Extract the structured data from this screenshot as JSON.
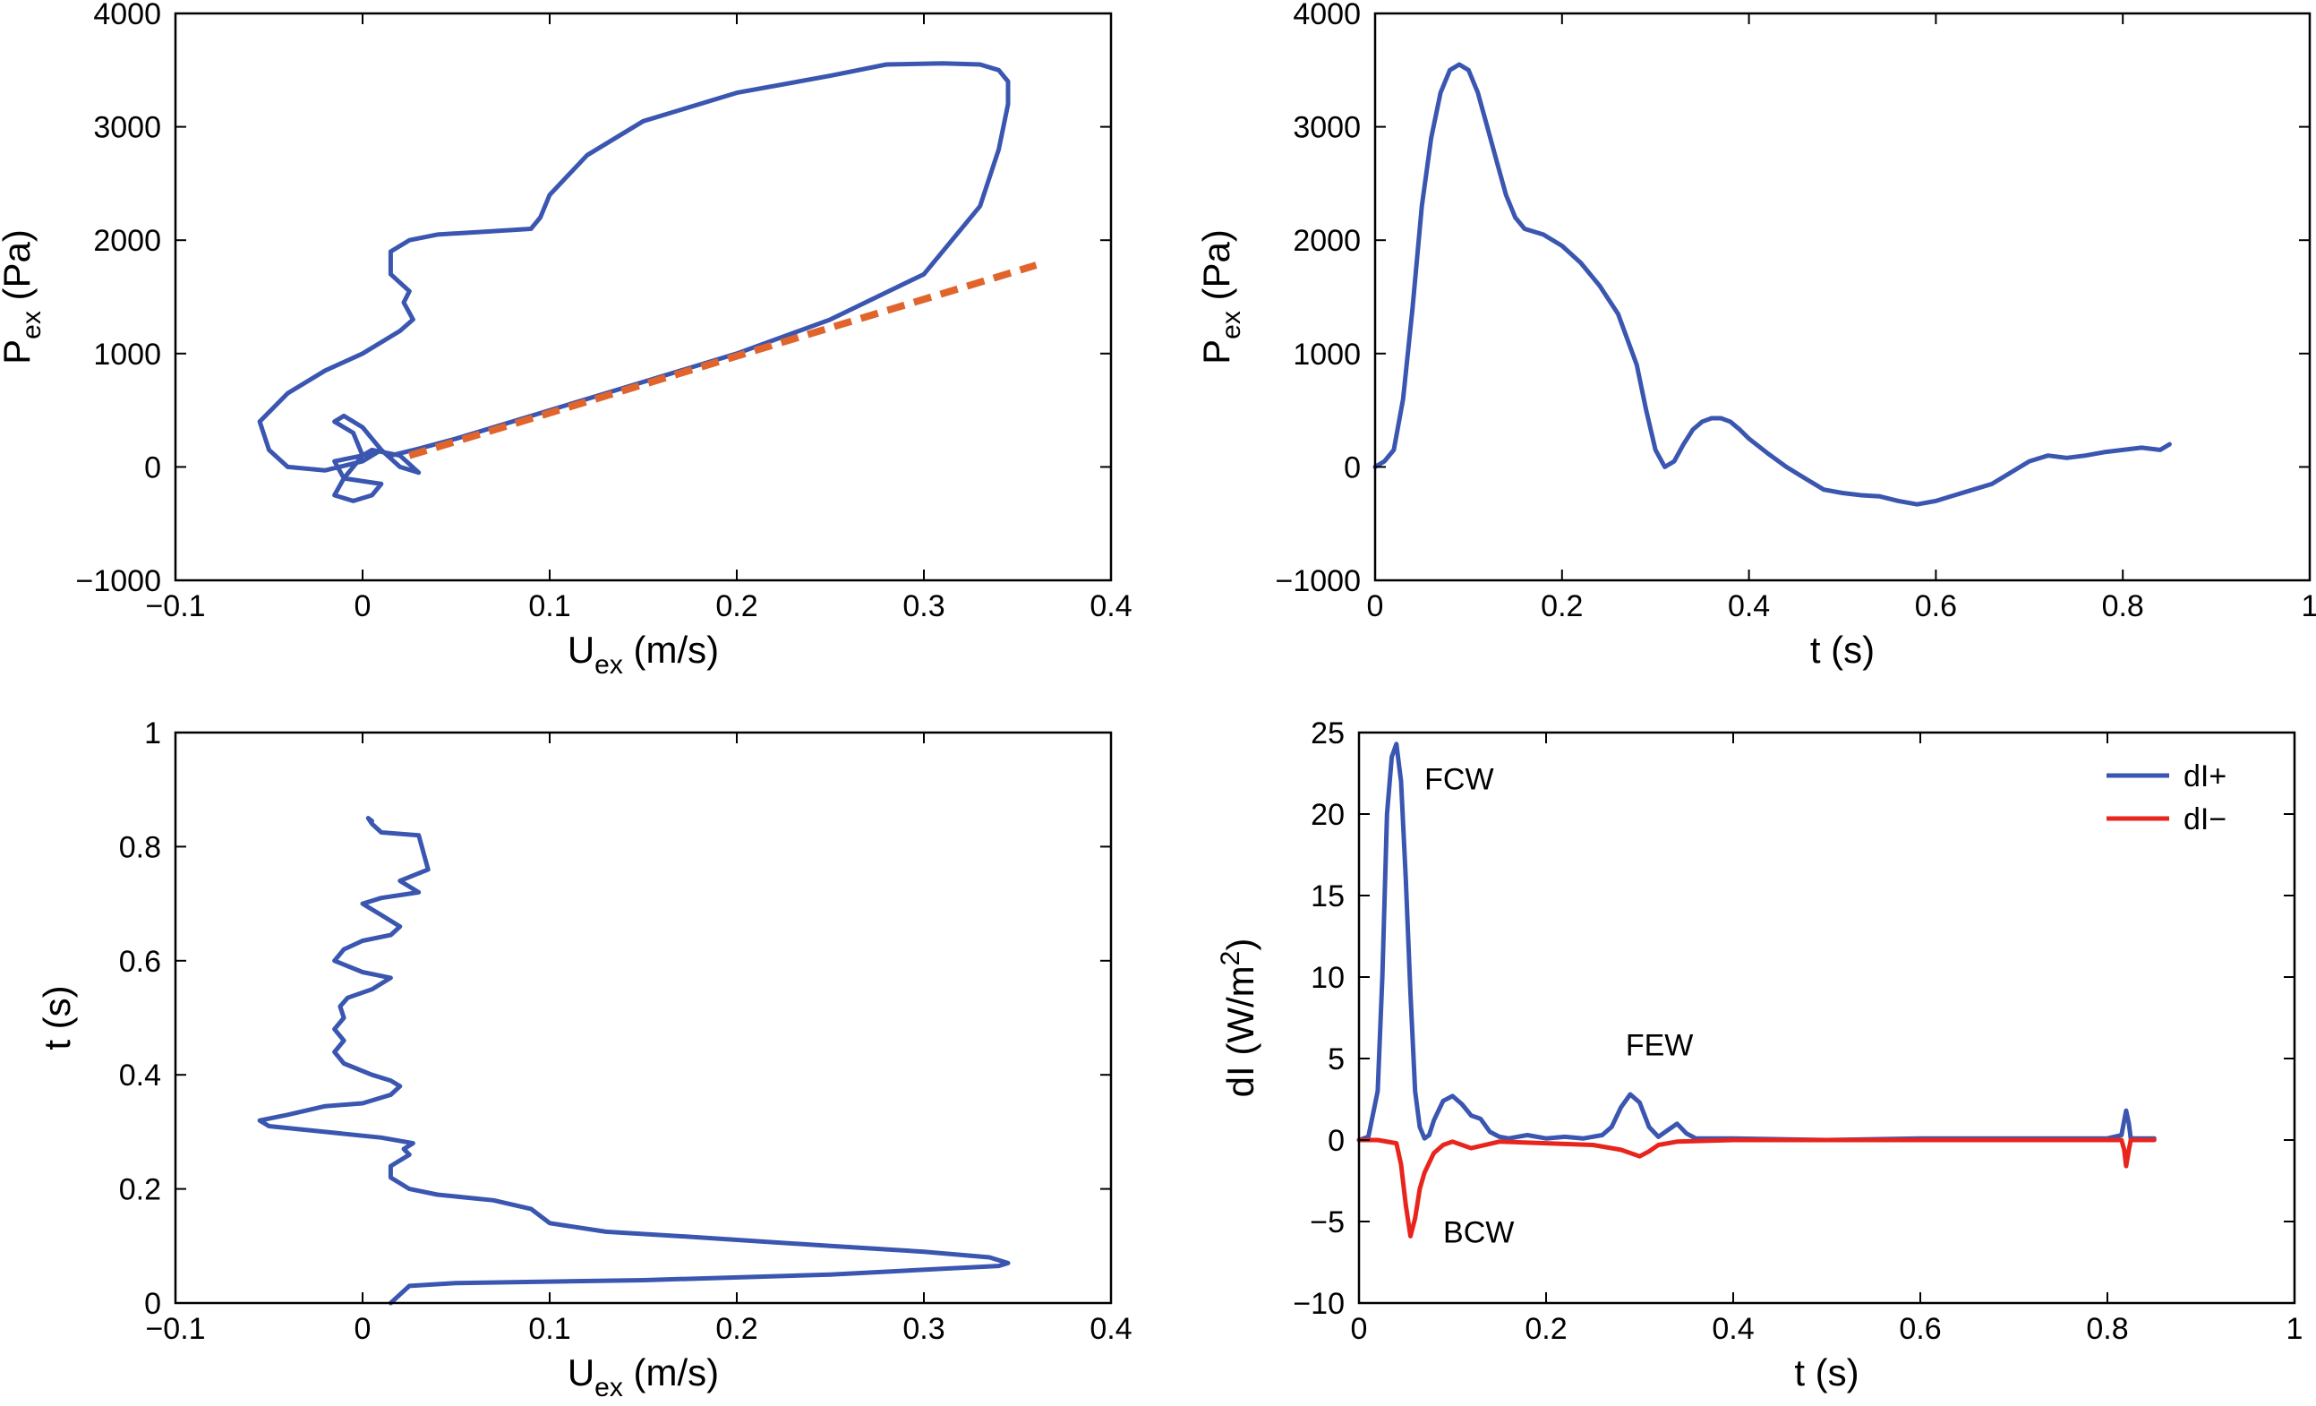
{
  "colors": {
    "blue": "#3a56b0",
    "red": "#e8251d",
    "orange": "#e0642c"
  },
  "chart_data": [
    {
      "id": "p-vs-u",
      "type": "line",
      "title": "",
      "xlabel": "U",
      "xlabel_sub": "ex",
      "xlabel_unit": " (m/s)",
      "ylabel": "P",
      "ylabel_sub": "ex",
      "ylabel_unit": " (Pa)",
      "xlim": [
        -0.1,
        0.4
      ],
      "ylim": [
        -1000,
        4000
      ],
      "xticks": [
        -0.1,
        0,
        0.1,
        0.2,
        0.3,
        0.4
      ],
      "xtick_labels": [
        "−0.1",
        "0",
        "0.1",
        "0.2",
        "0.3",
        "0.4"
      ],
      "yticks": [
        -1000,
        0,
        1000,
        2000,
        3000,
        4000
      ],
      "ytick_labels": [
        "−1000",
        "0",
        "1000",
        "2000",
        "3000",
        "4000"
      ],
      "grid": false,
      "series": [
        {
          "style": "solid",
          "color": "blue",
          "x": [
            0.015,
            0.02,
            0.03,
            0.05,
            0.1,
            0.15,
            0.2,
            0.25,
            0.3,
            0.33,
            0.34,
            0.345,
            0.345,
            0.34,
            0.33,
            0.31,
            0.28,
            0.25,
            0.2,
            0.15,
            0.12,
            0.1,
            0.095,
            0.09,
            0.07,
            0.04,
            0.025,
            0.015,
            0.015,
            0.025,
            0.022,
            0.027,
            0.02,
            0.0,
            -0.02,
            -0.04,
            -0.055,
            -0.05,
            -0.04,
            -0.02,
            0.0,
            0.01,
            0.005,
            0.0,
            -0.01,
            -0.015,
            -0.005,
            0.0,
            -0.01,
            -0.015,
            -0.005,
            0.005,
            0.01,
            -0.01,
            -0.015,
            0.0,
            0.01,
            0.02,
            0.03,
            0.02,
            0.005,
            0.0
          ],
          "y": [
            100,
            120,
            160,
            250,
            500,
            750,
            1000,
            1300,
            1700,
            2300,
            2800,
            3200,
            3400,
            3500,
            3550,
            3560,
            3550,
            3450,
            3300,
            3050,
            2750,
            2400,
            2200,
            2100,
            2080,
            2050,
            2000,
            1900,
            1700,
            1550,
            1450,
            1300,
            1200,
            1000,
            850,
            650,
            400,
            150,
            0,
            -30,
            50,
            150,
            250,
            350,
            450,
            400,
            300,
            100,
            -100,
            -250,
            -300,
            -250,
            -150,
            -100,
            50,
            100,
            150,
            0,
            -50,
            100,
            150,
            100
          ]
        },
        {
          "style": "dashed",
          "color": "orange",
          "x": [
            0.025,
            0.36
          ],
          "y": [
            100,
            1780
          ]
        }
      ]
    },
    {
      "id": "p-vs-t",
      "type": "line",
      "title": "",
      "xlabel": "t (s)",
      "ylabel": "P",
      "ylabel_sub": "ex",
      "ylabel_unit": " (Pa)",
      "xlim": [
        0,
        1
      ],
      "ylim": [
        -1000,
        4000
      ],
      "xticks": [
        0,
        0.2,
        0.4,
        0.6,
        0.8,
        1
      ],
      "xtick_labels": [
        "0",
        "0.2",
        "0.4",
        "0.6",
        "0.8",
        "1"
      ],
      "yticks": [
        -1000,
        0,
        1000,
        2000,
        3000,
        4000
      ],
      "ytick_labels": [
        "−1000",
        "0",
        "1000",
        "2000",
        "3000",
        "4000"
      ],
      "grid": false,
      "series": [
        {
          "style": "solid",
          "color": "blue",
          "x": [
            0,
            0.01,
            0.02,
            0.03,
            0.04,
            0.05,
            0.06,
            0.07,
            0.08,
            0.09,
            0.1,
            0.11,
            0.12,
            0.13,
            0.14,
            0.15,
            0.16,
            0.18,
            0.2,
            0.22,
            0.24,
            0.26,
            0.28,
            0.29,
            0.3,
            0.31,
            0.32,
            0.33,
            0.34,
            0.35,
            0.36,
            0.37,
            0.38,
            0.39,
            0.4,
            0.42,
            0.44,
            0.46,
            0.48,
            0.5,
            0.52,
            0.54,
            0.56,
            0.58,
            0.6,
            0.62,
            0.64,
            0.66,
            0.68,
            0.7,
            0.72,
            0.74,
            0.76,
            0.78,
            0.8,
            0.82,
            0.84,
            0.85
          ],
          "y": [
            0,
            50,
            150,
            600,
            1400,
            2300,
            2900,
            3300,
            3500,
            3550,
            3500,
            3300,
            3000,
            2700,
            2400,
            2200,
            2100,
            2050,
            1950,
            1800,
            1600,
            1350,
            900,
            500,
            150,
            0,
            50,
            200,
            330,
            400,
            430,
            430,
            400,
            330,
            250,
            120,
            0,
            -100,
            -200,
            -230,
            -250,
            -260,
            -300,
            -330,
            -300,
            -250,
            -200,
            -150,
            -50,
            50,
            100,
            80,
            100,
            130,
            150,
            170,
            150,
            200
          ]
        }
      ]
    },
    {
      "id": "t-vs-u",
      "type": "line",
      "title": "",
      "xlabel": "U",
      "xlabel_sub": "ex",
      "xlabel_unit": " (m/s)",
      "ylabel": "t (s)",
      "xlim": [
        -0.1,
        0.4
      ],
      "ylim": [
        0,
        1
      ],
      "xticks": [
        -0.1,
        0,
        0.1,
        0.2,
        0.3,
        0.4
      ],
      "xtick_labels": [
        "−0.1",
        "0",
        "0.1",
        "0.2",
        "0.3",
        "0.4"
      ],
      "yticks": [
        0,
        0.2,
        0.4,
        0.6,
        0.8,
        1
      ],
      "ytick_labels": [
        "0",
        "0.2",
        "0.4",
        "0.6",
        "0.8",
        "1"
      ],
      "grid": false,
      "series": [
        {
          "style": "solid",
          "color": "blue",
          "x": [
            0.015,
            0.02,
            0.025,
            0.05,
            0.15,
            0.25,
            0.31,
            0.34,
            0.345,
            0.335,
            0.3,
            0.25,
            0.18,
            0.13,
            0.1,
            0.09,
            0.07,
            0.04,
            0.025,
            0.015,
            0.015,
            0.025,
            0.022,
            0.027,
            0.01,
            -0.02,
            -0.05,
            -0.055,
            -0.04,
            -0.02,
            0.0,
            0.015,
            0.02,
            0.015,
            0.005,
            -0.01,
            -0.015,
            -0.01,
            -0.015,
            -0.01,
            -0.012,
            -0.008,
            0.005,
            0.015,
            0.0,
            -0.015,
            -0.01,
            0.0,
            0.015,
            0.02,
            0.01,
            0.0,
            0.01,
            0.03,
            0.02,
            0.035,
            0.03,
            0.01,
            0.005,
            0.003,
            0.005
          ],
          "y": [
            0.0,
            0.015,
            0.03,
            0.035,
            0.04,
            0.05,
            0.06,
            0.065,
            0.07,
            0.08,
            0.09,
            0.1,
            0.115,
            0.125,
            0.14,
            0.165,
            0.18,
            0.19,
            0.2,
            0.22,
            0.24,
            0.26,
            0.27,
            0.28,
            0.29,
            0.3,
            0.31,
            0.32,
            0.33,
            0.345,
            0.35,
            0.365,
            0.38,
            0.39,
            0.4,
            0.42,
            0.44,
            0.46,
            0.48,
            0.5,
            0.52,
            0.535,
            0.55,
            0.57,
            0.58,
            0.6,
            0.62,
            0.635,
            0.645,
            0.66,
            0.68,
            0.7,
            0.71,
            0.72,
            0.74,
            0.76,
            0.82,
            0.825,
            0.84,
            0.85,
            0.845
          ]
        }
      ]
    },
    {
      "id": "di-vs-t",
      "type": "line",
      "title": "",
      "xlabel": "t (s)",
      "ylabel": "dI (W/m",
      "ylabel_sup": "2",
      "ylabel_unit": ")",
      "xlim": [
        0,
        1
      ],
      "ylim": [
        -10,
        25
      ],
      "xticks": [
        0,
        0.2,
        0.4,
        0.6,
        0.8,
        1
      ],
      "xtick_labels": [
        "0",
        "0.2",
        "0.4",
        "0.6",
        "0.8",
        "1"
      ],
      "yticks": [
        -10,
        -5,
        0,
        5,
        10,
        15,
        20,
        25
      ],
      "ytick_labels": [
        "−10",
        "−5",
        "0",
        "5",
        "10",
        "15",
        "20",
        "25"
      ],
      "grid": false,
      "legend": {
        "position": "top-right",
        "entries": [
          "dI+",
          "dI−"
        ]
      },
      "annotations": [
        {
          "text": "FCW",
          "x": 0.07,
          "y": 21.5
        },
        {
          "text": "BCW",
          "x": 0.09,
          "y": -6.3
        },
        {
          "text": "FEW",
          "x": 0.285,
          "y": 5.2
        }
      ],
      "series": [
        {
          "name": "dI+",
          "style": "solid",
          "color": "blue",
          "x": [
            0,
            0.01,
            0.02,
            0.025,
            0.03,
            0.035,
            0.04,
            0.045,
            0.05,
            0.055,
            0.06,
            0.065,
            0.07,
            0.075,
            0.08,
            0.09,
            0.1,
            0.11,
            0.12,
            0.13,
            0.14,
            0.15,
            0.16,
            0.18,
            0.2,
            0.22,
            0.24,
            0.26,
            0.27,
            0.28,
            0.29,
            0.3,
            0.31,
            0.32,
            0.33,
            0.34,
            0.35,
            0.36,
            0.4,
            0.5,
            0.6,
            0.7,
            0.8,
            0.815,
            0.818,
            0.82,
            0.823,
            0.825,
            0.85
          ],
          "y": [
            0,
            0.2,
            3,
            10,
            20,
            23.5,
            24.3,
            22,
            16,
            9,
            3,
            0.8,
            0.1,
            0.3,
            1.2,
            2.4,
            2.7,
            2.2,
            1.5,
            1.3,
            0.5,
            0.2,
            0.1,
            0.3,
            0.1,
            0.2,
            0.1,
            0.3,
            0.8,
            2.0,
            2.8,
            2.3,
            0.8,
            0.2,
            0.6,
            1.0,
            0.4,
            0.1,
            0.1,
            0.0,
            0.1,
            0.1,
            0.1,
            0.3,
            1.2,
            1.8,
            1.0,
            0.1,
            0.1
          ]
        },
        {
          "name": "dI−",
          "style": "solid",
          "color": "red",
          "x": [
            0,
            0.02,
            0.04,
            0.045,
            0.05,
            0.055,
            0.06,
            0.065,
            0.07,
            0.08,
            0.09,
            0.1,
            0.12,
            0.15,
            0.2,
            0.25,
            0.28,
            0.3,
            0.31,
            0.32,
            0.34,
            0.4,
            0.5,
            0.6,
            0.7,
            0.8,
            0.815,
            0.818,
            0.82,
            0.823,
            0.825,
            0.85
          ],
          "y": [
            0,
            0,
            -0.2,
            -1.5,
            -4,
            -5.9,
            -4.8,
            -3,
            -2,
            -0.8,
            -0.3,
            -0.1,
            -0.5,
            -0.1,
            -0.2,
            -0.3,
            -0.6,
            -1.0,
            -0.7,
            -0.3,
            -0.1,
            0,
            0,
            0,
            0,
            0,
            0,
            -0.6,
            -1.6,
            -0.6,
            0,
            0
          ]
        }
      ]
    }
  ]
}
